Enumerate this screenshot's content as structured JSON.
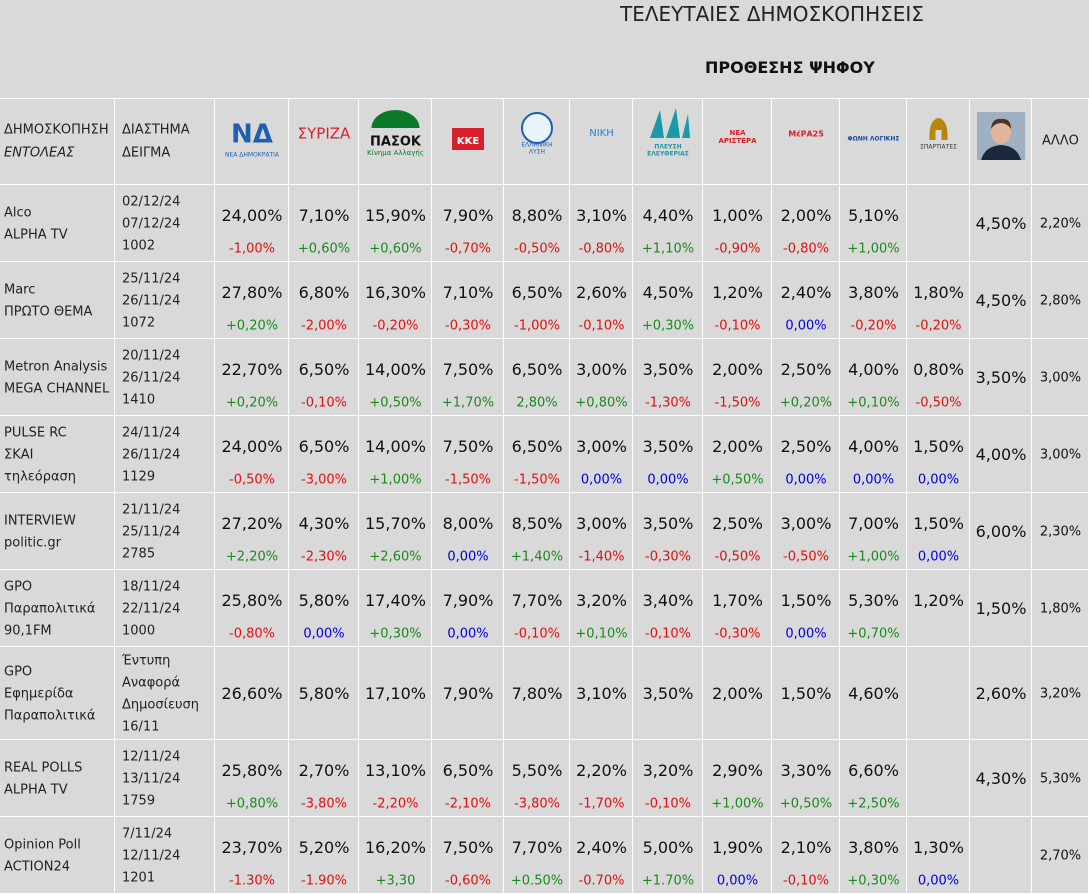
{
  "title": "ΤΕΛΕΥΤΑΙΕΣ ΔΗΜΟΣΚΟΠΗΣΕΙΣ",
  "subtitle": "ΠΡΟΘΕΣΗΣ ΨΗΦΟΥ",
  "header": {
    "poll": "ΔΗΜΟΣΚΟΠΗΣΗ",
    "sponsor": "ΕΝΤΟΛΕΑΣ",
    "period": "ΔΙΑΣΤΗΜΑ",
    "sample": "ΔΕΙΓΜΑ",
    "other": "ΑΛΛΟ",
    "parties": [
      [
        "ΝΔ",
        "ΝΕΑ ΔΗΜΟΚΡΑΤΙΑ"
      ],
      [
        "ΣΥΡΙΖΑ"
      ],
      [
        "ΠΑΣΟΚ",
        "Κίνημα Αλλαγής"
      ],
      [
        "ΚΚΕ"
      ],
      [
        "ΕΛΛΗΝΙΚΗ",
        "ΛΥΣΗ"
      ],
      [
        "ΝΙΚΗ"
      ],
      [
        "ΠΛΕΥΣΗ",
        "ΕΛΕΥΘΕΡΙΑΣ"
      ],
      [
        "ΝΕΑ",
        "ΑΡΙΣΤΕΡΑ"
      ],
      [
        "ΜέΡΑ25"
      ],
      [
        "ΦΩΝΗ ΛΟΓΙΚΗΣ"
      ],
      [
        "ΣΠΑΡΤΙΑΤΕΣ"
      ]
    ]
  },
  "rows": [
    {
      "pollster": [
        "Alco",
        "ALPHA TV"
      ],
      "period": [
        "02/12/24",
        "07/12/24",
        "1002"
      ],
      "values": [
        "24,00%",
        "7,10%",
        "15,90%",
        "7,90%",
        "8,80%",
        "3,10%",
        "4,40%",
        "1,00%",
        "2,00%",
        "5,10%",
        null,
        "4,50%",
        "2,20%"
      ],
      "changes": [
        "-1,00%",
        "+0,60%",
        "+0,60%",
        "-0,70%",
        "-0,50%",
        "-0,80%",
        "+1,10%",
        "-0,90%",
        "-0,80%",
        "+1,00%",
        null
      ]
    },
    {
      "pollster": [
        "Marc",
        "ΠΡΩΤΟ ΘΕΜΑ"
      ],
      "period": [
        "25/11/24",
        "26/11/24",
        "1072"
      ],
      "values": [
        "27,80%",
        "6,80%",
        "16,30%",
        "7,10%",
        "6,50%",
        "2,60%",
        "4,50%",
        "1,20%",
        "2,40%",
        "3,80%",
        "1,80%",
        "4,50%",
        "2,80%"
      ],
      "changes": [
        "+0,20%",
        "-2,00%",
        "-0,20%",
        "-0,30%",
        "-1,00%",
        "-0,10%",
        "+0,30%",
        "-0,10%",
        "0,00%",
        "-0,20%",
        "-0,20%"
      ]
    },
    {
      "pollster": [
        "Metron Analysis",
        "MEGA CHANNEL"
      ],
      "period": [
        "20/11/24",
        "26/11/24",
        "1410"
      ],
      "values": [
        "22,70%",
        "6,50%",
        "14,00%",
        "7,50%",
        "6,50%",
        "3,00%",
        "3,50%",
        "2,00%",
        "2,50%",
        "4,00%",
        "0,80%",
        "3,50%",
        "3,00%"
      ],
      "changes": [
        "+0,20%",
        "-0,10%",
        "+0,50%",
        "+1,70%",
        "2,80%",
        "+0,80%",
        "-1,30%",
        "-1,50%",
        "+0,20%",
        "+0,10%",
        "-0,50%"
      ]
    },
    {
      "pollster": [
        "PULSE RC",
        "ΣΚΑΙ",
        "τηλεόραση"
      ],
      "period": [
        "24/11/24",
        "26/11/24",
        "1129"
      ],
      "values": [
        "24,00%",
        "6,50%",
        "14,00%",
        "7,50%",
        "6,50%",
        "3,00%",
        "3,50%",
        "2,00%",
        "2,50%",
        "4,00%",
        "1,50%",
        "4,00%",
        "3,00%"
      ],
      "changes": [
        "-0,50%",
        "-3,00%",
        "+1,00%",
        "-1,50%",
        "-1,50%",
        "0,00%",
        "0,00%",
        "+0,50%",
        "0,00%",
        "0,00%",
        "0,00%"
      ]
    },
    {
      "pollster": [
        "INTERVIEW",
        "politic.gr"
      ],
      "period": [
        "21/11/24",
        "25/11/24",
        "2785"
      ],
      "values": [
        "27,20%",
        "4,30%",
        "15,70%",
        "8,00%",
        "8,50%",
        "3,00%",
        "3,50%",
        "2,50%",
        "3,00%",
        "7,00%",
        "1,50%",
        "6,00%",
        "2,30%"
      ],
      "changes": [
        "+2,20%",
        "-2,30%",
        "+2,60%",
        "0,00%",
        "+1,40%",
        "-1,40%",
        "-0,30%",
        "-0,50%",
        "-0,50%",
        "+1,00%",
        "0,00%"
      ]
    },
    {
      "pollster": [
        "GPO",
        "Παραπολιτικά",
        "90,1FM"
      ],
      "period": [
        "18/11/24",
        "22/11/24",
        "1000"
      ],
      "values": [
        "25,80%",
        "5,80%",
        "17,40%",
        "7,90%",
        "7,70%",
        "3,20%",
        "3,40%",
        "1,70%",
        "1,50%",
        "5,30%",
        "1,20%",
        "1,50%",
        "1,80%"
      ],
      "changes": [
        "-0,80%",
        "0,00%",
        "+0,30%",
        "0,00%",
        "-0,10%",
        "+0,10%",
        "-0,10%",
        "-0,30%",
        "0,00%",
        "+0,70%",
        null
      ]
    },
    {
      "pollster": [
        "GPO",
        "Εφημερίδα",
        "Παραπολιτικά"
      ],
      "period": [
        "Έντυπη",
        "Αναφορά",
        "Δημοσίευση",
        "16/11"
      ],
      "values": [
        "26,60%",
        "5,80%",
        "17,10%",
        "7,90%",
        "7,80%",
        "3,10%",
        "3,50%",
        "2,00%",
        "1,50%",
        "4,60%",
        null,
        "2,60%",
        "3,20%"
      ],
      "changes": null
    },
    {
      "pollster": [
        "REAL POLLS",
        "ALPHA TV"
      ],
      "period": [
        "12/11/24",
        "13/11/24",
        "1759"
      ],
      "values": [
        "25,80%",
        "2,70%",
        "13,10%",
        "6,50%",
        "5,50%",
        "2,20%",
        "3,20%",
        "2,90%",
        "3,30%",
        "6,60%",
        null,
        "4,30%",
        "5,30%"
      ],
      "changes": [
        "+0,80%",
        "-3,80%",
        "-2,20%",
        "-2,10%",
        "-3,80%",
        "-1,70%",
        "-0,10%",
        "+1,00%",
        "+0,50%",
        "+2,50%",
        null
      ]
    },
    {
      "pollster": [
        "Opinion Poll",
        "ACTION24"
      ],
      "period": [
        "7/11/24",
        "12/11/24",
        "1201"
      ],
      "values": [
        "23,70%",
        "5,20%",
        "16,20%",
        "7,50%",
        "7,70%",
        "2,40%",
        "5,00%",
        "1,90%",
        "2,10%",
        "3,80%",
        "1,30%",
        null,
        "2,70%"
      ],
      "changes": [
        "-1.30%",
        "-1.90%",
        "+3,30",
        "-0,60%",
        "+0.50%",
        "-0.70%",
        "+1.70%",
        "0,00%",
        "-0,10%",
        "+0,30%",
        "0,00%"
      ]
    }
  ]
}
